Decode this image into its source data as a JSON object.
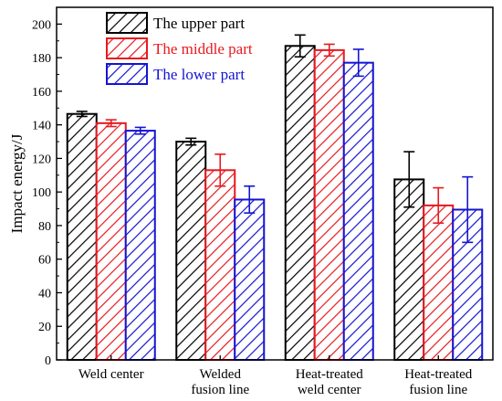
{
  "chart_data": {
    "type": "bar",
    "title": "",
    "xlabel": "",
    "ylabel": "Impact energy/J",
    "ylim": [
      0,
      210
    ],
    "yticks": [
      0,
      20,
      40,
      60,
      80,
      100,
      120,
      140,
      160,
      180,
      200
    ],
    "grid": false,
    "legend_position": "top-left",
    "categories": [
      [
        "Weld center"
      ],
      [
        "Welded",
        "fusion line"
      ],
      [
        "Heat-treated",
        "weld center"
      ],
      [
        "Heat-treated",
        "fusion line"
      ]
    ],
    "series": [
      {
        "name": "The upper part",
        "color": "#000000",
        "values": [
          146.5,
          130,
          187,
          107.5
        ],
        "errors": [
          1.5,
          2,
          6.5,
          16.5
        ]
      },
      {
        "name": "The middle part",
        "color": "#e8191e",
        "values": [
          141,
          113,
          184.5,
          92
        ],
        "errors": [
          2,
          9.5,
          3.5,
          10.5
        ]
      },
      {
        "name": "The lower part",
        "color": "#1414d2",
        "values": [
          136.5,
          95.5,
          177,
          89.5
        ],
        "errors": [
          2,
          8,
          8,
          19.5
        ]
      }
    ]
  }
}
